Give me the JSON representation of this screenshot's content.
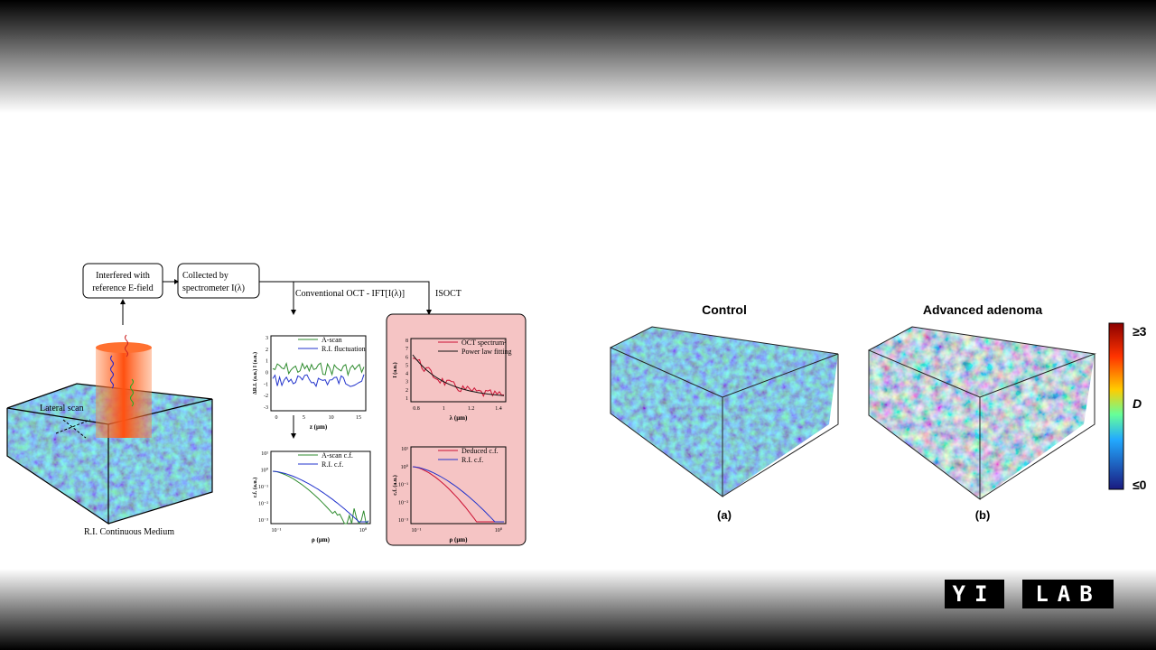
{
  "diagram": {
    "boxes": [
      "Interfered with",
      "reference E-field",
      "Collected by",
      "spectrometer I(λ)"
    ],
    "branches": [
      "Conventional OCT - IFT[I(λ)]",
      "ISOCT"
    ],
    "lateral_scan": "Lateral scan",
    "medium_label": "R.I. Continuous Medium"
  },
  "plots": [
    {
      "legend": [
        {
          "name": "A-scan",
          "color": "#2e8b2e"
        },
        {
          "name": "R.I. fluctuation",
          "color": "#2233cc"
        }
      ],
      "xlabel": "z (μm)",
      "ylabel": "ΔR.I. (a.u.)  I (a.u.)",
      "xticks": [
        "0",
        "5",
        "10",
        "15"
      ],
      "yticks": [
        "3",
        "2",
        "1",
        "0",
        "-1",
        "-2",
        "-3"
      ]
    },
    {
      "legend": [
        {
          "name": "A-scan c.f.",
          "color": "#2e8b2e"
        },
        {
          "name": "R.I. c.f.",
          "color": "#2233cc"
        }
      ],
      "xlabel": "ρ (μm)",
      "ylabel": "c.f. (a.u.)",
      "xticks": [
        "10⁻¹",
        "10⁰"
      ],
      "yticks": [
        "10¹",
        "10⁰",
        "10⁻¹",
        "10⁻²",
        "10⁻³"
      ]
    },
    {
      "legend": [
        {
          "name": "OCT spectrum²",
          "color": "#cc1133"
        },
        {
          "name": "Power law fitting",
          "color": "#111111"
        }
      ],
      "xlabel": "λ (μm)",
      "ylabel": "I (a.u.)",
      "xticks": [
        "0.8",
        "1",
        "1.2",
        "1.4"
      ],
      "yticks": [
        "8",
        "7",
        "6",
        "5",
        "4",
        "3",
        "2",
        "1"
      ]
    },
    {
      "legend": [
        {
          "name": "Deduced c.f.",
          "color": "#cc1133"
        },
        {
          "name": "R.I. c.f.",
          "color": "#2233cc"
        }
      ],
      "xlabel": "ρ (μm)",
      "ylabel": "c.f. (a.u.)",
      "xticks": [
        "10⁻¹",
        "10⁰"
      ],
      "yticks": [
        "10¹",
        "10⁰",
        "10⁻¹",
        "10⁻²",
        "10⁻³"
      ]
    }
  ],
  "panels": [
    {
      "title": "Control",
      "caption": "(a)"
    },
    {
      "title": "Advanced adenoma",
      "caption": "(b)"
    }
  ],
  "colorbar": {
    "top": "≥3",
    "middle": "D",
    "bottom": "≤0"
  },
  "logo": {
    "left": "YI",
    "right": "LAB"
  }
}
